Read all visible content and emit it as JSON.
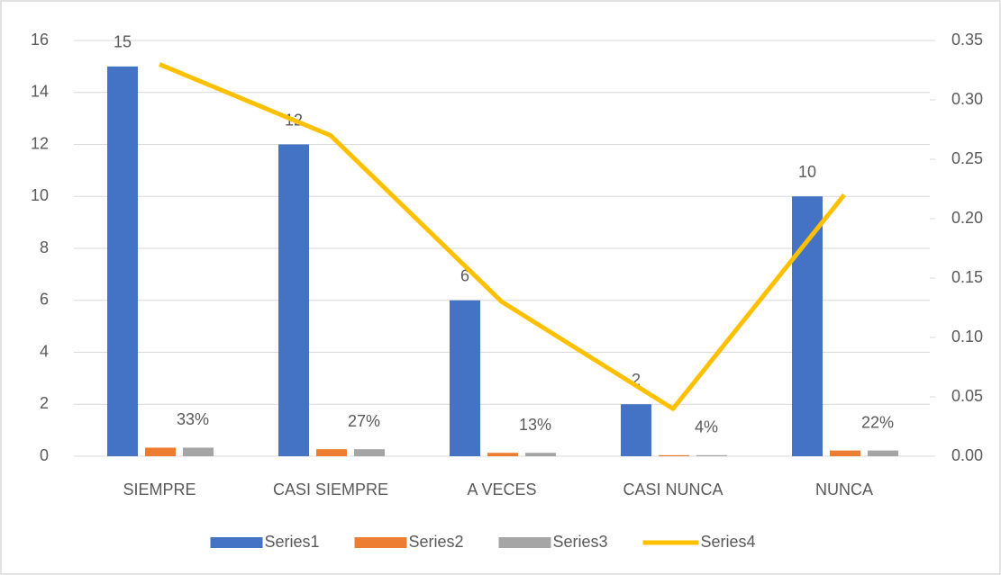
{
  "chart_data": {
    "type": "bar",
    "categories": [
      "SIEMPRE",
      "CASI SIEMPRE",
      "A VECES",
      "CASI NUNCA",
      "NUNCA"
    ],
    "series": [
      {
        "name": "Series1",
        "color": "#4472c4",
        "values": [
          15,
          12,
          6,
          2,
          10
        ]
      },
      {
        "name": "Series2",
        "color": "#ed7d31",
        "values": [
          0.33,
          0.27,
          0.13,
          0.04,
          0.22
        ]
      },
      {
        "name": "Series3",
        "color": "#a5a5a5",
        "values": [
          0.33,
          0.27,
          0.13,
          0.04,
          0.22
        ],
        "value_labels": [
          "33%",
          "27%",
          "13%",
          "4%",
          "22%"
        ]
      },
      {
        "name": "Series4",
        "color": "#ffc000",
        "type": "line",
        "axis": "y2",
        "values": [
          0.33,
          0.27,
          0.13,
          0.04,
          0.22
        ]
      }
    ],
    "ylim": [
      0,
      16
    ],
    "yticks": [
      0,
      2,
      4,
      6,
      8,
      10,
      12,
      14,
      16
    ],
    "y2lim": [
      0,
      0.35
    ],
    "y2ticks": [
      {
        "value": 0,
        "label": "0.00"
      },
      {
        "value": 0.05,
        "label": "0.05"
      },
      {
        "value": 0.1,
        "label": "0.10"
      },
      {
        "value": 0.15,
        "label": "0.15"
      },
      {
        "value": 0.2,
        "label": "0.20"
      },
      {
        "value": 0.25,
        "label": "0.25"
      },
      {
        "value": 0.3,
        "label": "0.30"
      },
      {
        "value": 0.35,
        "label": "0.35"
      }
    ],
    "grid": true,
    "legend": "bottom"
  }
}
